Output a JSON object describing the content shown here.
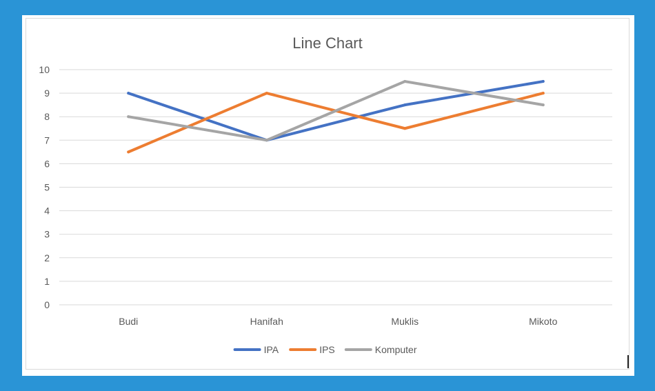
{
  "chart_data": {
    "type": "line",
    "title": "Line Chart",
    "xlabel": "",
    "ylabel": "",
    "categories": [
      "Budi",
      "Hanifah",
      "Muklis",
      "Mikoto"
    ],
    "ylim": [
      0,
      10
    ],
    "yticks": [
      "0",
      "1",
      "2",
      "3",
      "4",
      "5",
      "6",
      "7",
      "8",
      "9",
      "10"
    ],
    "grid": true,
    "legend_position": "bottom",
    "series": [
      {
        "name": "IPA",
        "color": "#4472c4",
        "values": [
          9,
          7,
          8.5,
          9.5
        ]
      },
      {
        "name": "IPS",
        "color": "#ed7d31",
        "values": [
          6.5,
          9,
          7.5,
          9
        ]
      },
      {
        "name": "Komputer",
        "color": "#a5a5a5",
        "values": [
          8,
          7,
          9.5,
          8.5
        ]
      }
    ]
  },
  "colors": {
    "background": "#2a94d6",
    "gridline": "#d9d9d9",
    "text": "#595959"
  }
}
